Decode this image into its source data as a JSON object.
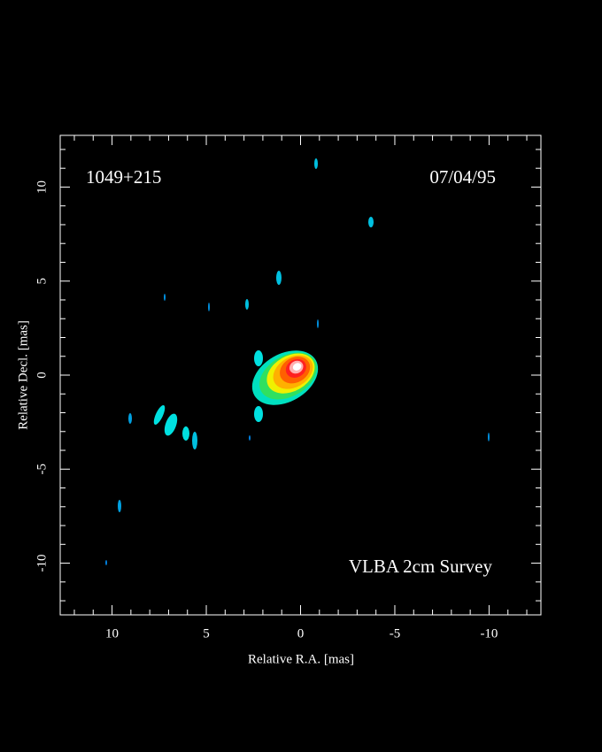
{
  "chart_data": {
    "type": "image",
    "labels": {
      "source": "1049+215",
      "date": "07/04/95",
      "survey": "VLBA 2cm Survey"
    },
    "x_label": "Relative R.A. [mas]",
    "y_label": "Relative Decl. [mas]",
    "xlim": [
      12.75,
      -12.75
    ],
    "ylim": [
      -12.75,
      12.75
    ],
    "xticks": [
      10,
      5,
      0,
      -5,
      -10
    ],
    "yticks": [
      -10,
      -5,
      0,
      5,
      10
    ],
    "xminorticks": [
      12,
      11,
      9,
      8,
      7,
      6,
      4,
      3,
      2,
      1,
      -1,
      -2,
      -3,
      -4,
      -6,
      -7,
      -8,
      -9,
      -11,
      -12
    ],
    "yminorticks": [
      -12,
      -11,
      -9,
      -8,
      -7,
      -6,
      -4,
      -3,
      -2,
      -1,
      1,
      2,
      3,
      4,
      6,
      7,
      8,
      9,
      11,
      12
    ]
  }
}
